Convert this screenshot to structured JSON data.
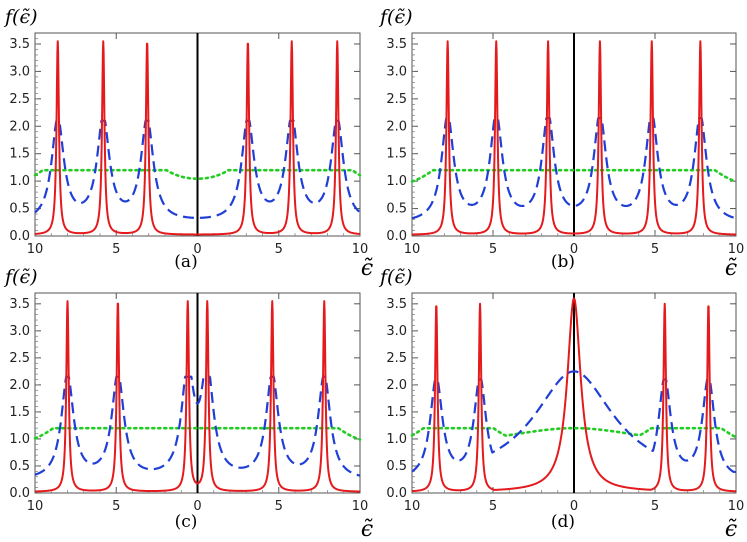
{
  "figure": {
    "domain": "Chart",
    "layout": "2x2 panels"
  },
  "chart_data": [
    {
      "type": "line",
      "panel": "a",
      "title": "",
      "caption": "(a)",
      "ylabel": "f(ϵ̃)",
      "xlabel": "ϵ̃",
      "xlim": [
        -10,
        10
      ],
      "ylim": [
        0,
        3.7
      ],
      "xticks": [
        -10,
        -5,
        0,
        5,
        10
      ],
      "xtick_labels": [
        "10",
        "5",
        "0",
        "5",
        "10"
      ],
      "yticks": [
        0.0,
        0.5,
        1.0,
        1.5,
        2.0,
        2.5,
        3.0,
        3.5
      ],
      "ytick_labels": [
        "0.0",
        "0.5",
        "1.0",
        "1.5",
        "2.0",
        "2.5",
        "3.0",
        "3.5"
      ],
      "peaks": [
        -8.6,
        -5.8,
        -3.1,
        3.1,
        5.8,
        8.6
      ],
      "series": [
        {
          "name": "solid",
          "style": "solid",
          "color": "#e41a1c",
          "gamma": 0.09,
          "peak_height": 3.55,
          "baseline": 0.02
        },
        {
          "name": "dashed",
          "style": "dashed",
          "color": "#1f3fd6",
          "gamma": 0.45,
          "peak_height": 2.1,
          "baseline": 0.22
        },
        {
          "name": "dotted",
          "style": "dotted",
          "color": "#22cc22",
          "gamma": 1.6,
          "peak_height": 1.2,
          "baseline": 0.78
        }
      ]
    },
    {
      "type": "line",
      "panel": "b",
      "title": "",
      "caption": "(b)",
      "ylabel": "f(ϵ̃)",
      "xlabel": "ϵ̃",
      "xlim": [
        -10,
        10
      ],
      "ylim": [
        0,
        3.7
      ],
      "xticks": [
        -10,
        -5,
        0,
        5,
        10
      ],
      "xtick_labels": [
        "10",
        "5",
        "0",
        "5",
        "10"
      ],
      "yticks": [
        0.0,
        0.5,
        1.0,
        1.5,
        2.0,
        2.5,
        3.0,
        3.5
      ],
      "ytick_labels": [
        "0.0",
        "0.5",
        "1.0",
        "1.5",
        "2.0",
        "2.5",
        "3.0",
        "3.5"
      ],
      "peaks": [
        -7.8,
        -4.8,
        -1.6,
        1.6,
        4.8,
        7.8
      ],
      "series": [
        {
          "name": "solid",
          "style": "solid",
          "color": "#e41a1c",
          "gamma": 0.09,
          "peak_height": 3.55,
          "baseline": 0.02
        },
        {
          "name": "dashed",
          "style": "dashed",
          "color": "#1f3fd6",
          "gamma": 0.45,
          "peak_height": 2.15,
          "baseline": 0.22
        },
        {
          "name": "dotted",
          "style": "dotted",
          "color": "#22cc22",
          "gamma": 1.6,
          "peak_height": 1.2,
          "baseline": 0.78
        }
      ]
    },
    {
      "type": "line",
      "panel": "c",
      "title": "",
      "caption": "(c)",
      "ylabel": "f(ϵ̃)",
      "xlabel": "ϵ̃",
      "xlim": [
        -10,
        10
      ],
      "ylim": [
        0,
        3.7
      ],
      "xticks": [
        -10,
        -5,
        0,
        5,
        10
      ],
      "xtick_labels": [
        "10",
        "5",
        "0",
        "5",
        "10"
      ],
      "yticks": [
        0.0,
        0.5,
        1.0,
        1.5,
        2.0,
        2.5,
        3.0,
        3.5
      ],
      "ytick_labels": [
        "0.0",
        "0.5",
        "1.0",
        "1.5",
        "2.0",
        "2.5",
        "3.0",
        "3.5"
      ],
      "peaks": [
        -8.0,
        -4.9,
        -0.6,
        0.6,
        4.6,
        7.8
      ],
      "series": [
        {
          "name": "solid",
          "style": "solid",
          "color": "#e41a1c",
          "gamma": 0.09,
          "peak_height": 3.55,
          "baseline": 0.02
        },
        {
          "name": "dashed",
          "style": "dashed",
          "color": "#1f3fd6",
          "gamma": 0.45,
          "peak_height": 2.15,
          "baseline": 0.22
        },
        {
          "name": "dotted",
          "style": "dotted",
          "color": "#22cc22",
          "gamma": 1.6,
          "peak_height": 1.2,
          "baseline": 0.78
        }
      ]
    },
    {
      "type": "line",
      "panel": "d",
      "title": "",
      "caption": "(d)",
      "ylabel": "f(ϵ̃)",
      "xlabel": "ϵ̃",
      "xlim": [
        -10,
        10
      ],
      "ylim": [
        0,
        3.7
      ],
      "xticks": [
        -10,
        -5,
        0,
        5,
        10
      ],
      "xtick_labels": [
        "10",
        "5",
        "0",
        "5",
        "10"
      ],
      "yticks": [
        0.0,
        0.5,
        1.0,
        1.5,
        2.0,
        2.5,
        3.0,
        3.5
      ],
      "ytick_labels": [
        "0.0",
        "0.5",
        "1.0",
        "1.5",
        "2.0",
        "2.5",
        "3.0",
        "3.5"
      ],
      "peaks": [
        -8.5,
        -5.8,
        5.6,
        8.3
      ],
      "center_peak": {
        "x": 0,
        "solid_height": 3.6,
        "dashed_height": 2.25,
        "dotted_height": 1.2
      },
      "series": [
        {
          "name": "solid",
          "style": "solid",
          "color": "#e41a1c",
          "gamma": 0.09,
          "peak_height": 3.5,
          "baseline": 0.02
        },
        {
          "name": "dashed",
          "style": "dashed",
          "color": "#1f3fd6",
          "gamma": 0.45,
          "peak_height": 2.1,
          "baseline": 0.22
        },
        {
          "name": "dotted",
          "style": "dotted",
          "color": "#22cc22",
          "gamma": 1.6,
          "peak_height": 1.2,
          "baseline": 0.78
        }
      ]
    }
  ]
}
